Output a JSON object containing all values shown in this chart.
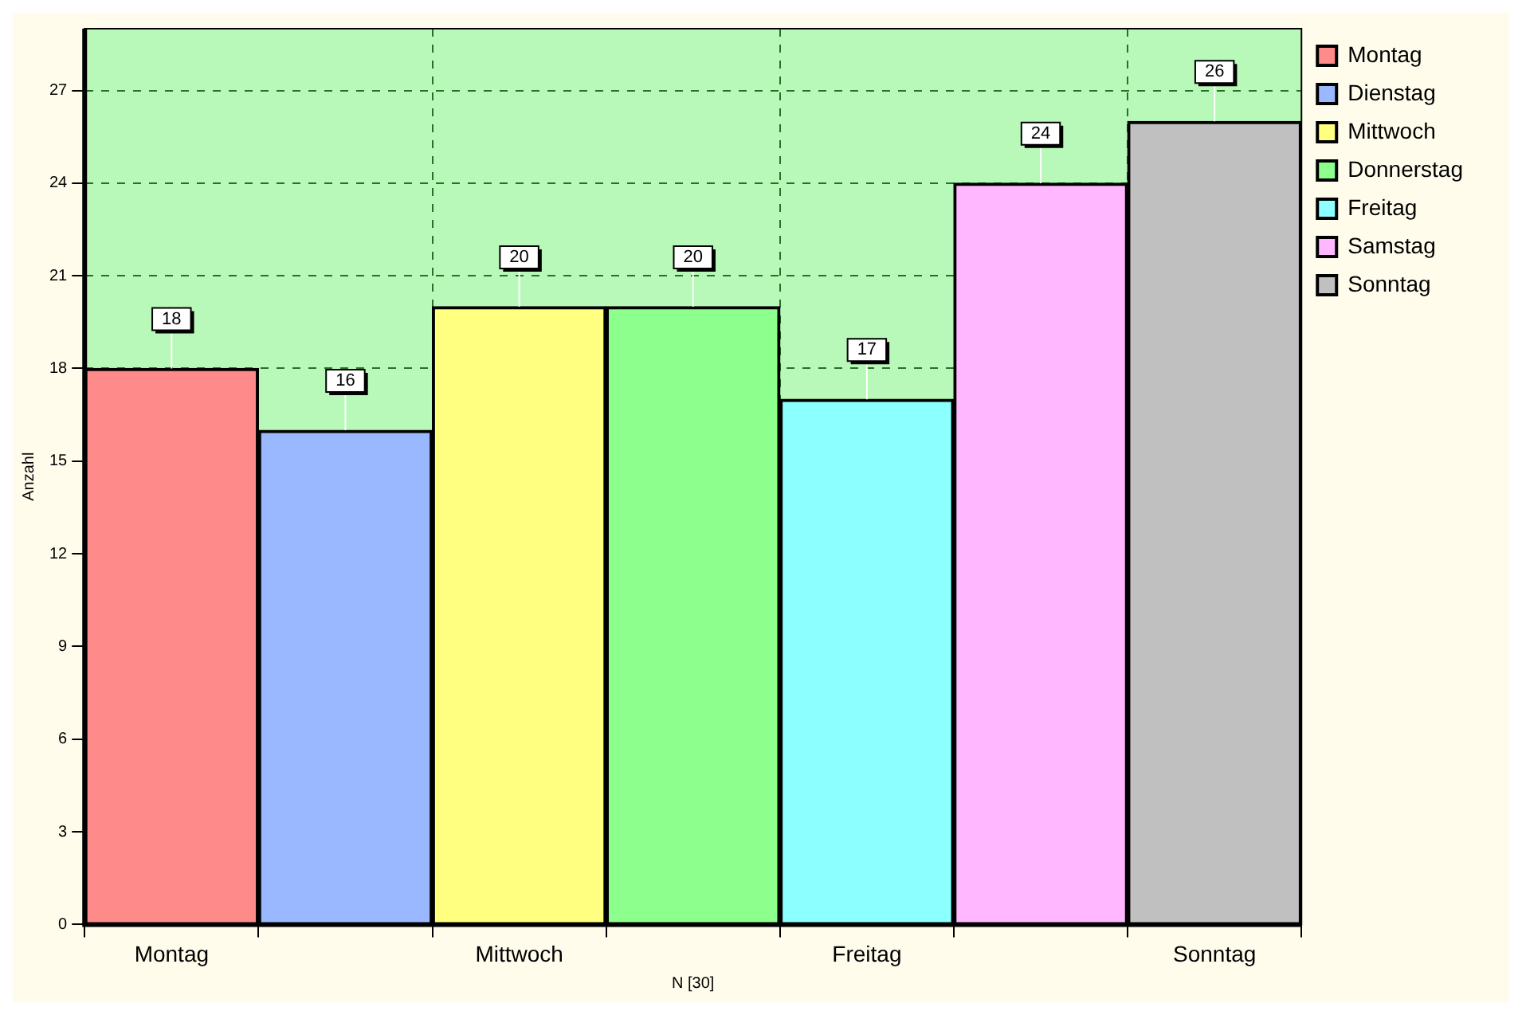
{
  "chart_data": {
    "type": "bar",
    "xlabel": "N [30]",
    "ylabel": "Anzahl",
    "categories": [
      "Montag",
      null,
      "Mittwoch",
      null,
      "Freitag",
      null,
      "Sonntag"
    ],
    "series": [
      {
        "name": "Montag",
        "color": "#ff8a8a",
        "values": [
          18,
          null,
          null,
          null,
          null,
          null,
          null
        ]
      },
      {
        "name": "Dienstag",
        "color": "#99b8ff",
        "values": [
          null,
          16,
          null,
          null,
          null,
          null,
          null
        ]
      },
      {
        "name": "Mittwoch",
        "color": "#ffff80",
        "values": [
          null,
          null,
          20,
          null,
          null,
          null,
          null
        ]
      },
      {
        "name": "Donnerstag",
        "color": "#8cff8c",
        "values": [
          null,
          null,
          null,
          20,
          null,
          null,
          null
        ]
      },
      {
        "name": "Freitag",
        "color": "#8cffff",
        "values": [
          null,
          null,
          null,
          null,
          17,
          null,
          null
        ]
      },
      {
        "name": "Samstag",
        "color": "#ffb8ff",
        "values": [
          null,
          null,
          null,
          null,
          null,
          24,
          null
        ]
      },
      {
        "name": "Sonntag",
        "color": "#c0c0c0",
        "values": [
          null,
          null,
          null,
          null,
          null,
          null,
          26
        ]
      }
    ],
    "ylim": [
      0,
      29
    ],
    "yticks": [
      0,
      3,
      6,
      9,
      12,
      15,
      18,
      21,
      24,
      27
    ],
    "grid": true,
    "legend": "right",
    "data_labels": true
  }
}
